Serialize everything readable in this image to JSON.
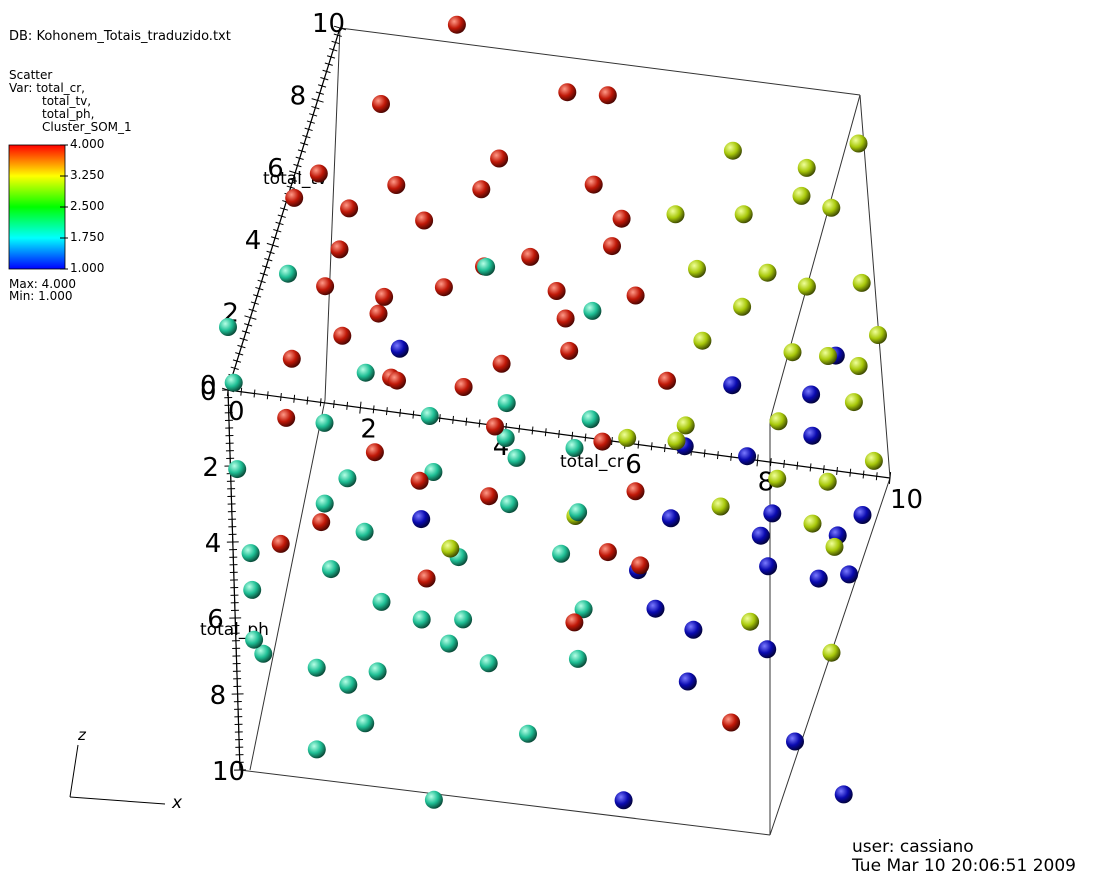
{
  "db_label": "DB: Kohonem_Totais_traduzido.txt",
  "plot_name": "Scatter",
  "var_label": "Var: total_cr,",
  "var_lines": [
    "total_tv,",
    "total_ph,",
    "Cluster_SOM_1"
  ],
  "legend": {
    "ticks": [
      "4.000",
      "3.250",
      "2.500",
      "1.750",
      "1.000"
    ],
    "max_label": "Max:  4.000",
    "min_label": "Min:  1.000"
  },
  "axes": {
    "cr": {
      "title": "total_cr",
      "ticks": [
        "0",
        "2",
        "4",
        "6",
        "8",
        "10"
      ]
    },
    "tv": {
      "title": "total_tv",
      "ticks": [
        "0",
        "2",
        "4",
        "6",
        "8",
        "10"
      ]
    },
    "ph": {
      "title": "total_ph",
      "ticks": [
        "0",
        "2",
        "4",
        "6",
        "8",
        "10"
      ]
    }
  },
  "triad": {
    "z": "z",
    "x": "x"
  },
  "user_label": "user: cassiano",
  "timestamp": "Tue Mar 10 20:06:51 2009",
  "colors": {
    "cluster_1": "#0a0ab0",
    "cluster_2": "#1fbf95",
    "cluster_3": "#a8c80a",
    "cluster_4": "#c01808"
  },
  "chart_data": {
    "type": "scatter",
    "dimensions": [
      "total_cr",
      "total_tv",
      "total_ph"
    ],
    "color_variable": "Cluster_SOM_1",
    "color_range": [
      1.0,
      4.0
    ],
    "xlim": [
      0,
      10
    ],
    "ylim": [
      0,
      10
    ],
    "zlim": [
      0,
      10
    ],
    "clusters": [
      {
        "value": 4,
        "region": "low total_cr, high total_tv"
      },
      {
        "value": 3,
        "region": "high total_cr, high total_tv"
      },
      {
        "value": 2,
        "region": "low total_tv, low to mid total_ph"
      },
      {
        "value": 1,
        "region": "high total_cr, low total_tv"
      }
    ]
  }
}
